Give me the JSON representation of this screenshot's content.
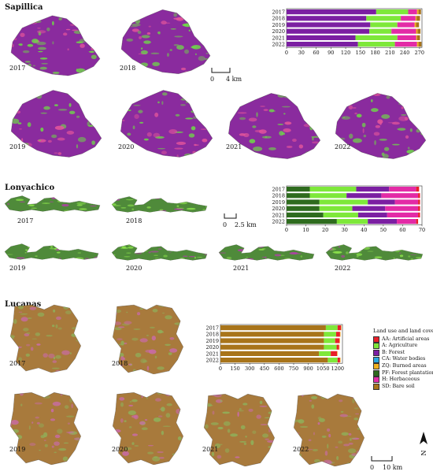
{
  "legend": {
    "title": "Land use and land cover",
    "items": [
      {
        "code": "AA",
        "label": "AA: Artificial areas",
        "color": "#e8202a"
      },
      {
        "code": "A",
        "label": "A: Agriculture",
        "color": "#7ee83a"
      },
      {
        "code": "B",
        "label": "B: Forest",
        "color": "#7b1fa2"
      },
      {
        "code": "CA",
        "label": "CA: Water bodies",
        "color": "#29a8e0"
      },
      {
        "code": "ZQ",
        "label": "ZQ: Burned areas",
        "color": "#f2b01e"
      },
      {
        "code": "PF",
        "label": "PF: Forest plantations",
        "color": "#2e6b1e"
      },
      {
        "code": "H",
        "label": "H: Herbaceous",
        "color": "#e32ba6"
      },
      {
        "code": "SD",
        "label": "SD: Bare soil",
        "color": "#a8741a"
      }
    ]
  },
  "regions": [
    {
      "name": "Sapillica",
      "years": [
        "2017",
        "2018",
        "2019",
        "2020",
        "2021",
        "2022"
      ],
      "scale_label": "4 km",
      "scale_zero": "0",
      "map_palette": {
        "base": "#8a2b9e",
        "accent": "#6fd44a",
        "extra": "#e3559b"
      },
      "chart_data": {
        "type": "bar",
        "orientation": "horizontal-stacked",
        "categories": [
          "2017",
          "2018",
          "2019",
          "2020",
          "2021",
          "2022"
        ],
        "xlim": [
          0,
          275
        ],
        "ticks": [
          0,
          30,
          60,
          90,
          120,
          150,
          180,
          210,
          240,
          270
        ],
        "series": [
          {
            "code": "B",
            "color": "#7b1fa2",
            "values": [
              182,
              162,
              170,
              168,
              140,
              145
            ]
          },
          {
            "code": "A",
            "color": "#7ee83a",
            "values": [
              65,
              70,
              55,
              45,
              85,
              75
            ]
          },
          {
            "code": "H",
            "color": "#e32ba6",
            "values": [
              18,
              30,
              35,
              50,
              38,
              45
            ]
          },
          {
            "code": "ZQ",
            "color": "#f2b01e",
            "values": [
              3,
              2,
              3,
              3,
              2,
              3
            ]
          },
          {
            "code": "SD",
            "color": "#a8741a",
            "values": [
              5,
              7,
              6,
              6,
              6,
              6
            ]
          }
        ]
      }
    },
    {
      "name": "Lonyachico",
      "years": [
        "2017",
        "2018",
        "2019",
        "2020",
        "2021",
        "2022"
      ],
      "scale_label": "2.5 km",
      "scale_zero": "0",
      "map_palette": {
        "base": "#4f8a3a",
        "accent": "#8be04c",
        "extra": "#b23fa8"
      },
      "chart_data": {
        "type": "bar",
        "orientation": "horizontal-stacked",
        "categories": [
          "2017",
          "2018",
          "2019",
          "2020",
          "2021",
          "2022"
        ],
        "xlim": [
          0,
          70
        ],
        "ticks": [
          0,
          10,
          20,
          30,
          40,
          50,
          60,
          70
        ],
        "series": [
          {
            "code": "PF",
            "color": "#2e6b1e",
            "values": [
              12,
              12,
              17,
              17,
              19,
              26
            ]
          },
          {
            "code": "A",
            "color": "#7ee83a",
            "values": [
              24,
              19,
              25,
              17,
              18,
              16
            ]
          },
          {
            "code": "B",
            "color": "#7b1fa2",
            "values": [
              17,
              18,
              14,
              17,
              15,
              15
            ]
          },
          {
            "code": "H",
            "color": "#e32ba6",
            "values": [
              14,
              19,
              12,
              17,
              16,
              10
            ]
          },
          {
            "code": "AA",
            "color": "#e8202a",
            "values": [
              1.5,
              1,
              1,
              1,
              1,
              1
            ]
          }
        ]
      }
    },
    {
      "name": "Lucanas",
      "years": [
        "2017",
        "2018",
        "2019",
        "2020",
        "2021",
        "2022"
      ],
      "scale_label": "10 km",
      "scale_zero": "0",
      "map_palette": {
        "base": "#a87a3c",
        "accent": "#8fb05a",
        "extra": "#c96ba8"
      },
      "chart_data": {
        "type": "bar",
        "orientation": "horizontal-stacked",
        "categories": [
          "2017",
          "2018",
          "2019",
          "2020",
          "2021",
          "2022"
        ],
        "xlim": [
          0,
          1250
        ],
        "ticks": [
          0,
          150,
          300,
          450,
          600,
          750,
          900,
          1050,
          1200
        ],
        "series": [
          {
            "code": "SD",
            "color": "#a8741a",
            "values": [
              1080,
              1060,
              1060,
              1060,
              1010,
              1100
            ]
          },
          {
            "code": "A",
            "color": "#7ee83a",
            "values": [
              120,
              125,
              115,
              130,
              120,
              100
            ]
          },
          {
            "code": "AA",
            "color": "#e8202a",
            "values": [
              35,
              40,
              45,
              25,
              65,
              25
            ]
          },
          {
            "code": "ZQ",
            "color": "#f2b01e",
            "values": [
              5,
              5,
              5,
              5,
              5,
              5
            ]
          }
        ]
      }
    }
  ],
  "north_label": "N"
}
